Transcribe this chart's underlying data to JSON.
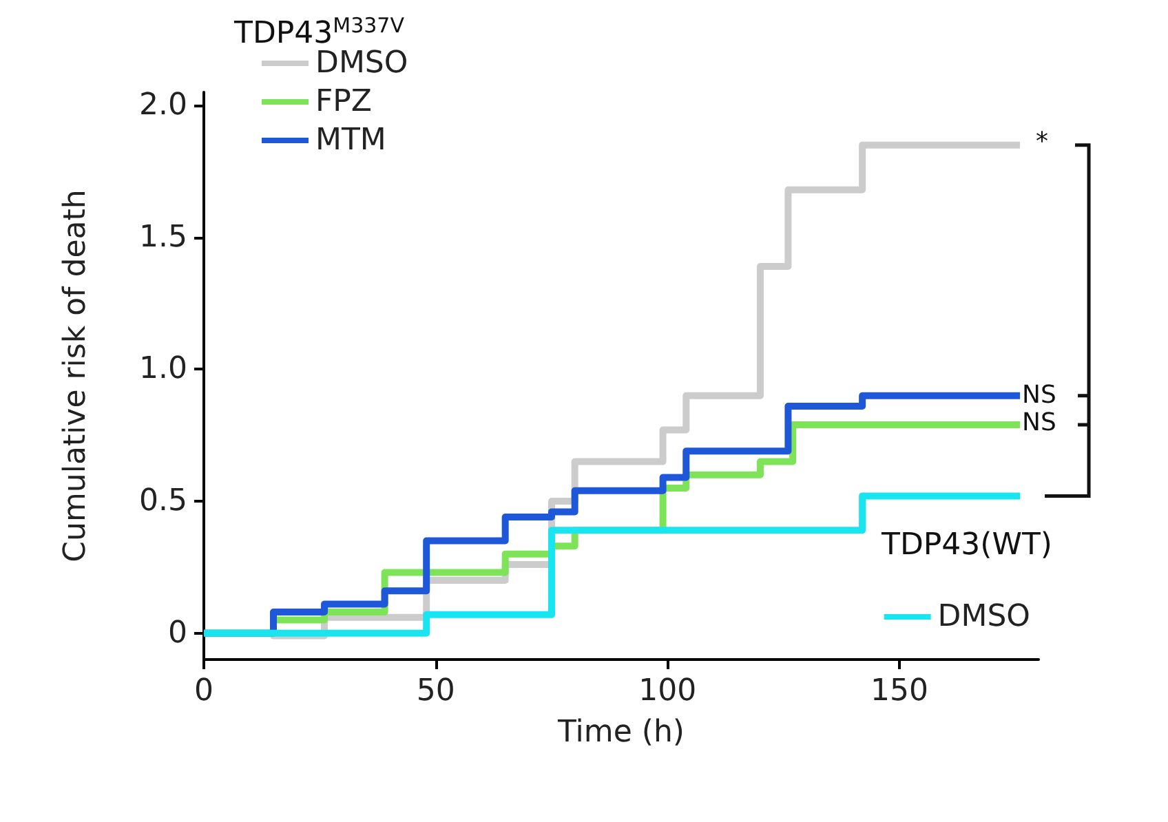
{
  "chart_data": {
    "type": "step",
    "xlabel": "Time (h)",
    "ylabel": "Cumulative risk of death",
    "legend_title": "TDP43$^{M337V}$",
    "legend": "top left",
    "grid": false,
    "xlim": [
      0,
      180
    ],
    "xticks": [
      0,
      50,
      100,
      150
    ],
    "ylim": [
      -0.1,
      2.05
    ],
    "yticks": [
      0,
      0.5,
      {
        "value": 1,
        "label": "1.0"
      },
      {
        "value": 1.5,
        "label": "1.5"
      },
      {
        "value": 2,
        "label": "2.0"
      }
    ],
    "series": [
      {
        "name": "DMSO",
        "color": "#cccccc",
        "x": [
          0,
          15,
          26,
          48,
          65,
          75,
          80,
          99,
          104,
          120,
          126,
          142,
          176
        ],
        "values": [
          0,
          -0.01,
          0.06,
          0.2,
          0.26,
          0.5,
          0.65,
          0.77,
          0.9,
          1.39,
          1.68,
          1.85,
          1.85
        ]
      },
      {
        "name": "FPZ",
        "color": "#7fe35a",
        "x": [
          0,
          15,
          26,
          39,
          65,
          75,
          80,
          99,
          104,
          120,
          127,
          176
        ],
        "values": [
          0,
          0.05,
          0.08,
          0.23,
          0.3,
          0.33,
          0.39,
          0.55,
          0.6,
          0.65,
          0.79,
          0.79
        ]
      },
      {
        "name": "MTM",
        "color": "#1f57d9",
        "x": [
          0,
          15,
          26,
          39,
          48,
          65,
          75,
          80,
          99,
          104,
          126,
          142,
          176
        ],
        "values": [
          0,
          0.08,
          0.11,
          0.16,
          0.35,
          0.44,
          0.46,
          0.54,
          0.59,
          0.69,
          0.86,
          0.9,
          0.9
        ]
      },
      {
        "name": "DMSO",
        "color": "#19e5f0",
        "x": [
          0,
          48,
          75,
          142,
          176
        ],
        "values": [
          0,
          0.07,
          0.39,
          0.52,
          0.52
        ]
      }
    ],
    "annotations": [
      "*",
      "NS",
      "NS",
      "TDP43(WT)"
    ]
  }
}
